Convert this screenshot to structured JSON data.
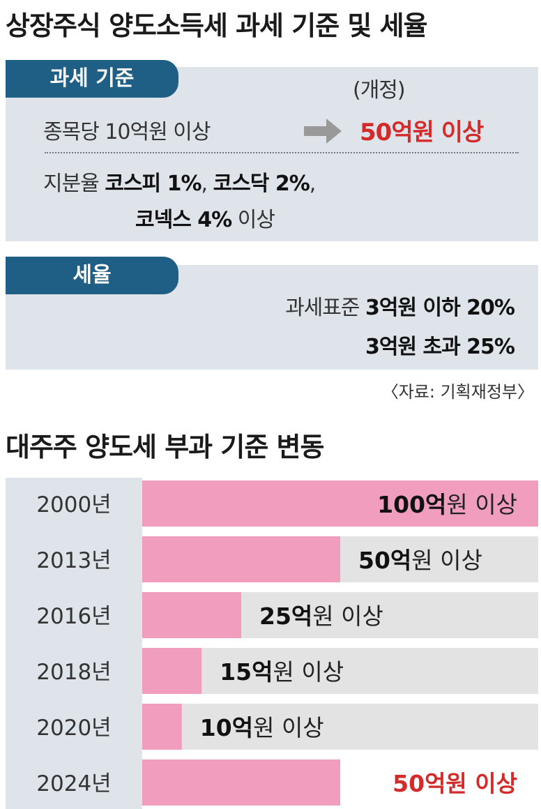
{
  "title": "상장주식 양도소득세 과세 기준 및 세율",
  "criteria": {
    "label": "과세 기준",
    "revised_label": "(개정)",
    "current": "종목당 10억원 이상",
    "revised": "50억원 이상",
    "share_prefix": "지분율 ",
    "share_kospi": "코스피 1%",
    "share_sep1": ", ",
    "share_kosdaq": "코스닥 2%",
    "share_sep2": ",",
    "share_konex_bold": "코넥스 4%",
    "share_konex_rest": " 이상"
  },
  "rate": {
    "label": "세율",
    "line1_prefix": "과세표준 ",
    "line1_bold": "3억원 이하 20%",
    "line2_bold": "3억원 초과 25%"
  },
  "source": "〈자료: 기획재정부〉",
  "chart_title": "대주주 양도세 부과 기준 변동",
  "colors": {
    "bar_fill": "#f09dbe",
    "bar_background": "#e3e3e3",
    "year_column": "#dfe4ea",
    "accent_red": "#d42a2a"
  },
  "chart_data": {
    "type": "bar",
    "orientation": "horizontal",
    "categories": [
      "2000년",
      "2013년",
      "2016년",
      "2018년",
      "2020년",
      "2024년"
    ],
    "values": [
      100,
      50,
      25,
      15,
      10,
      50
    ],
    "value_suffix": "억원 이상",
    "unit_text": "원 이상",
    "value_labels_bold": [
      "100억",
      "50억",
      "25억",
      "15억",
      "10억",
      "50억원 이상"
    ],
    "xlim": [
      0,
      100
    ],
    "grid": false,
    "highlight_last": true
  }
}
